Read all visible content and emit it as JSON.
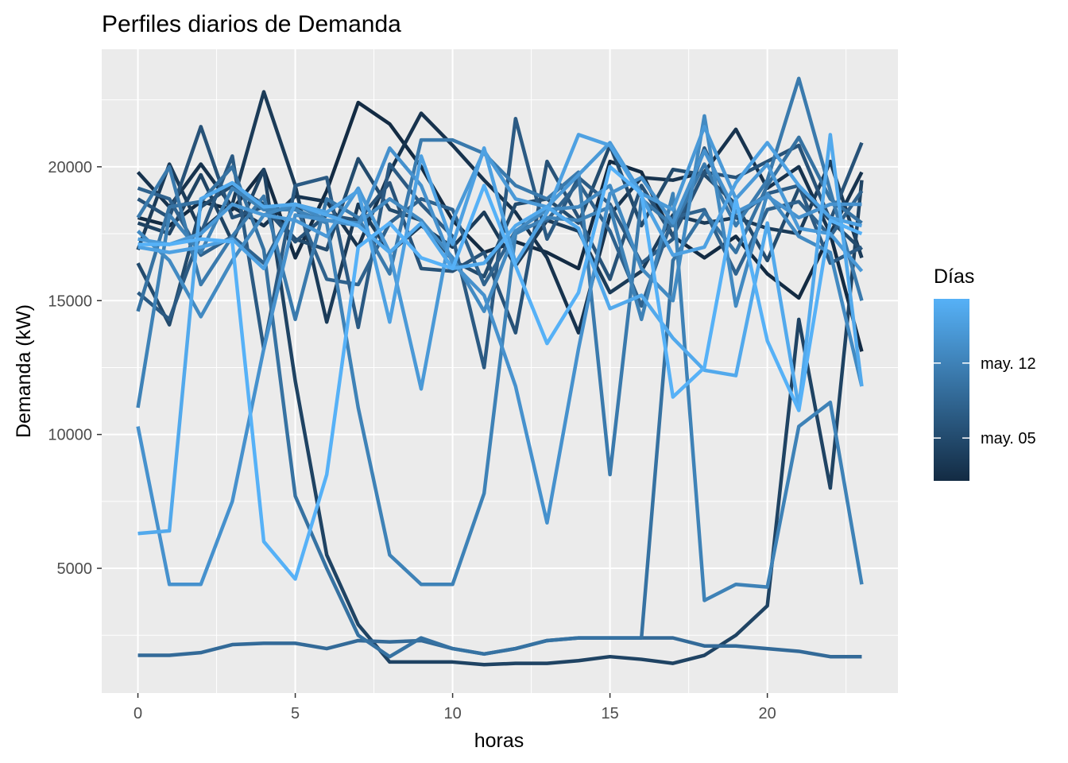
{
  "chart_data": {
    "type": "line",
    "title": "Perfiles diarios de Demanda",
    "xlabel": "horas",
    "ylabel": "Demanda (kW)",
    "xlim": [
      -1.15,
      24.15
    ],
    "ylim": [
      340,
      24390
    ],
    "x_ticks": [
      0,
      5,
      10,
      15,
      20
    ],
    "y_ticks": [
      5000,
      10000,
      15000,
      20000
    ],
    "grid": true,
    "legend": {
      "title": "Días",
      "placement": "right",
      "type": "colorbar",
      "day_range": [
        1,
        18
      ],
      "tick_labels": [
        {
          "label": "may. 05",
          "day": 5
        },
        {
          "label": "may. 12",
          "day": 12
        }
      ],
      "low_color": "#132B43",
      "high_color": "#56B1F7"
    },
    "x": [
      0,
      1,
      2,
      3,
      4,
      5,
      6,
      7,
      8,
      9,
      10,
      11,
      12,
      13,
      14,
      15,
      16,
      17,
      18,
      19,
      20,
      21,
      22,
      23
    ],
    "series": [
      {
        "name": "may. 01",
        "day": 1,
        "values": [
          18100,
          17800,
          18700,
          18400,
          19900,
          16600,
          19100,
          22400,
          21600,
          20000,
          18000,
          16800,
          17200,
          16800,
          16200,
          20200,
          19800,
          17400,
          16600,
          17400,
          16000,
          15100,
          17500,
          13100
        ]
      },
      {
        "name": "may. 02",
        "day": 2,
        "values": [
          19800,
          18500,
          20100,
          18500,
          17800,
          18900,
          18700,
          17000,
          19800,
          22000,
          20800,
          19500,
          18300,
          16600,
          13800,
          18200,
          19600,
          19500,
          19800,
          21400,
          19200,
          20000,
          17500,
          19800
        ]
      },
      {
        "name": "may. 03",
        "day": 3,
        "values": [
          16900,
          20100,
          17600,
          18600,
          22800,
          19300,
          14200,
          18600,
          16800,
          17800,
          17000,
          18300,
          16300,
          18000,
          17600,
          15300,
          16100,
          18200,
          17900,
          18100,
          17700,
          17500,
          20200,
          16600
        ]
      },
      {
        "name": "may. 04",
        "day": 4,
        "values": [
          17900,
          17500,
          19700,
          17200,
          19900,
          12000,
          5500,
          2900,
          1500,
          1500,
          1500,
          1400,
          1450,
          1450,
          1550,
          1700,
          1600,
          1450,
          1750,
          2500,
          3600,
          14300,
          8000,
          19500
        ]
      },
      {
        "name": "may. 05",
        "day": 5,
        "values": [
          16400,
          14100,
          18500,
          19300,
          18600,
          17300,
          16900,
          20300,
          18400,
          18000,
          16500,
          15900,
          18600,
          18800,
          17900,
          20800,
          17800,
          19900,
          19700,
          18600,
          16500,
          19200,
          18000,
          16900
        ]
      },
      {
        "name": "may. 06",
        "day": 6,
        "values": [
          18800,
          18100,
          21500,
          18100,
          18500,
          17200,
          18200,
          18000,
          19400,
          16200,
          16100,
          16800,
          13800,
          20200,
          18100,
          15800,
          19300,
          17400,
          19800,
          19600,
          20200,
          20800,
          18000,
          20900
        ]
      },
      {
        "name": "may. 07",
        "day": 7,
        "values": [
          15300,
          14300,
          17500,
          20400,
          13200,
          19300,
          19600,
          14000,
          20100,
          18600,
          17400,
          12500,
          21800,
          17300,
          19600,
          18600,
          16400,
          17300,
          20700,
          18100,
          19000,
          19300,
          16400,
          17000
        ]
      },
      {
        "name": "may. 08",
        "day": 8,
        "values": [
          19200,
          18800,
          16700,
          17400,
          16400,
          18600,
          15800,
          15600,
          17900,
          18800,
          18400,
          15600,
          17600,
          18000,
          19400,
          17600,
          14800,
          18100,
          18400,
          16000,
          18400,
          18700,
          17400,
          19100
        ]
      },
      {
        "name": "may. 09",
        "day": 9,
        "values": [
          1750,
          1750,
          1850,
          2150,
          2200,
          2200,
          2000,
          2300,
          2250,
          2300,
          2000,
          1800,
          2000,
          2300,
          2400,
          2400,
          2400,
          2400,
          2100,
          2100,
          2000,
          1900,
          1700,
          1700
        ]
      },
      {
        "name": "may. 10",
        "day": 10,
        "values": [
          14600,
          18500,
          18700,
          20000,
          16900,
          7700,
          5000,
          2500,
          1700,
          2400,
          2000,
          1800,
          2000,
          2300,
          2400,
          2400,
          2400,
          16500,
          18300,
          16800,
          19300,
          21100,
          18800,
          17900
        ]
      },
      {
        "name": "may. 11",
        "day": 11,
        "values": [
          18100,
          20000,
          15600,
          17400,
          18900,
          14300,
          18800,
          18100,
          16000,
          21000,
          21000,
          20500,
          19300,
          18800,
          19800,
          8500,
          18800,
          17800,
          20100,
          17800,
          19500,
          23300,
          19100,
          15000
        ]
      },
      {
        "name": "may. 12",
        "day": 12,
        "values": [
          11000,
          18200,
          16800,
          19200,
          18400,
          18400,
          17900,
          11000,
          5500,
          4400,
          4400,
          7800,
          17500,
          18100,
          18000,
          18500,
          14300,
          19000,
          3800,
          4400,
          4300,
          10300,
          11200,
          4400
        ]
      },
      {
        "name": "may. 13",
        "day": 13,
        "values": [
          17600,
          16500,
          14400,
          16500,
          18200,
          18600,
          18000,
          17900,
          18800,
          18000,
          16600,
          14600,
          17600,
          18400,
          18500,
          19300,
          16200,
          15000,
          21900,
          14800,
          19000,
          17400,
          16800,
          11800
        ]
      },
      {
        "name": "may. 14",
        "day": 14,
        "values": [
          10300,
          4400,
          4400,
          7500,
          13200,
          18200,
          18000,
          17800,
          20700,
          19300,
          16400,
          15200,
          11800,
          6700,
          13200,
          19000,
          19600,
          17900,
          20600,
          18300,
          18900,
          18100,
          18600,
          18600
        ]
      },
      {
        "name": "may. 15",
        "day": 15,
        "values": [
          17300,
          17100,
          17500,
          18600,
          18200,
          18000,
          17400,
          19200,
          16800,
          11700,
          18000,
          20600,
          18800,
          18500,
          19700,
          20900,
          19000,
          18400,
          21500,
          18800,
          20100,
          17700,
          17500,
          16100
        ]
      },
      {
        "name": "may. 16",
        "day": 16,
        "values": [
          17000,
          16800,
          17000,
          17300,
          16200,
          18600,
          18300,
          19100,
          14200,
          20400,
          17100,
          20700,
          16400,
          18300,
          21200,
          20800,
          18900,
          16700,
          17000,
          19400,
          20900,
          19300,
          18100,
          17800
        ]
      },
      {
        "name": "may. 17",
        "day": 17,
        "values": [
          6300,
          6400,
          18800,
          19400,
          18500,
          18600,
          18200,
          17800,
          16800,
          17900,
          16200,
          16400,
          17800,
          18500,
          17700,
          14700,
          15200,
          13600,
          12400,
          12200,
          17900,
          11000,
          21200,
          11800
        ]
      },
      {
        "name": "may. 18",
        "day": 18,
        "values": [
          17100,
          17100,
          17300,
          17200,
          6000,
          4600,
          8500,
          17000,
          17900,
          16600,
          16200,
          19300,
          16300,
          13400,
          15300,
          20000,
          19000,
          11400,
          12500,
          18800,
          13500,
          10900,
          18000,
          17500
        ]
      }
    ]
  }
}
